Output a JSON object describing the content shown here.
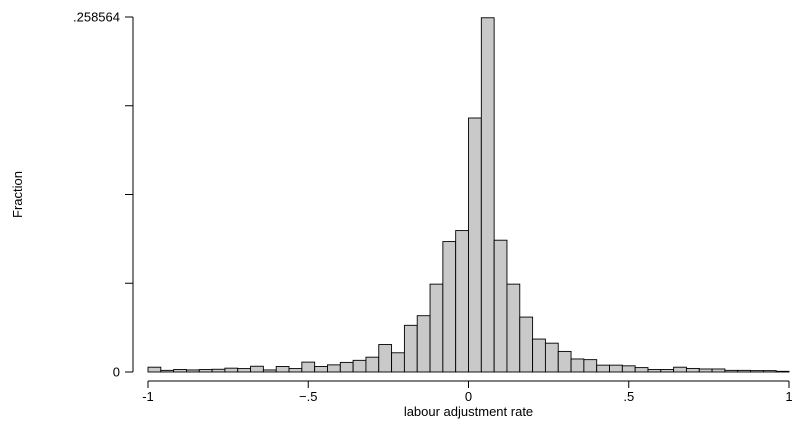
{
  "chart_data": {
    "type": "bar",
    "xlabel": "labour adjustment rate",
    "ylabel": "Fraction",
    "xlim": [
      -1,
      1
    ],
    "ylim": [
      0,
      0.258564
    ],
    "x_ticks": [
      {
        "value": -1,
        "label": "-1"
      },
      {
        "value": -0.5,
        "label": "−.5"
      },
      {
        "value": 0,
        "label": "0"
      },
      {
        "value": 0.5,
        "label": ".5"
      },
      {
        "value": 1,
        "label": "1"
      }
    ],
    "y_ticks": [
      {
        "value": 0,
        "label": "0"
      },
      {
        "value": 0.064641,
        "label": ""
      },
      {
        "value": 0.129282,
        "label": ""
      },
      {
        "value": 0.193923,
        "label": ""
      },
      {
        "value": 0.258564,
        "label": ".258564"
      }
    ],
    "bin_start": -1,
    "bin_width": 0.04,
    "values": [
      0.0035,
      0.0012,
      0.0018,
      0.0015,
      0.0018,
      0.002,
      0.0028,
      0.0025,
      0.0042,
      0.0015,
      0.004,
      0.0025,
      0.0072,
      0.004,
      0.0052,
      0.007,
      0.0085,
      0.0108,
      0.02,
      0.014,
      0.034,
      0.041,
      0.064,
      0.095,
      0.103,
      0.185,
      0.258,
      0.096,
      0.064,
      0.04,
      0.024,
      0.021,
      0.015,
      0.0095,
      0.009,
      0.005,
      0.005,
      0.0045,
      0.0032,
      0.0018,
      0.0018,
      0.0035,
      0.0026,
      0.0022,
      0.0022,
      0.0012,
      0.0012,
      0.001,
      0.001,
      0.0005
    ]
  }
}
